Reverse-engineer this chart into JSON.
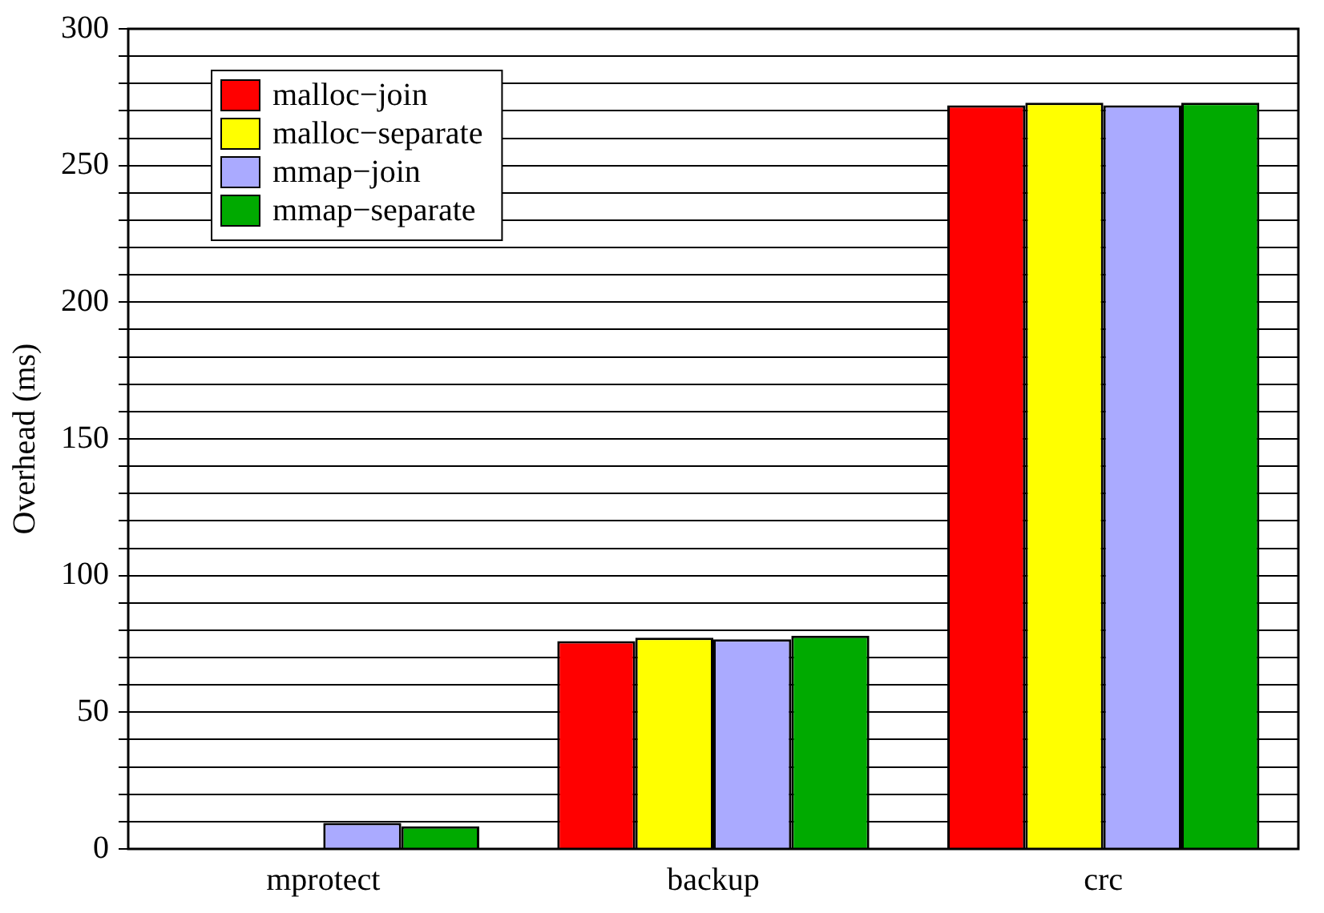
{
  "chart_data": {
    "type": "bar",
    "ylabel": "Overhead (ms)",
    "categories": [
      "mprotect",
      "backup",
      "crc"
    ],
    "series": [
      {
        "name": "malloc−join",
        "color": "#ff0000",
        "values": [
          0,
          76,
          272
        ]
      },
      {
        "name": "malloc−separate",
        "color": "#ffff00",
        "values": [
          0,
          77.3,
          273
        ]
      },
      {
        "name": "mmap−join",
        "color": "#aaaaff",
        "values": [
          9.5,
          76.7,
          272
        ]
      },
      {
        "name": "mmap−separate",
        "color": "#00aa00",
        "values": [
          8.3,
          78,
          273
        ]
      }
    ],
    "ylim": [
      0,
      300
    ],
    "yticks": [
      0,
      {
        "value": 10,
        "label": null
      },
      {
        "value": 20,
        "label": null
      },
      {
        "value": 30,
        "label": null
      },
      {
        "value": 40,
        "label": null
      },
      50,
      {
        "value": 60,
        "label": null
      },
      {
        "value": 70,
        "label": null
      },
      {
        "value": 80,
        "label": null
      },
      {
        "value": 90,
        "label": null
      },
      100,
      {
        "value": 110,
        "label": null
      },
      {
        "value": 120,
        "label": null
      },
      {
        "value": 130,
        "label": null
      },
      {
        "value": 140,
        "label": null
      },
      150,
      {
        "value": 160,
        "label": null
      },
      {
        "value": 170,
        "label": null
      },
      {
        "value": 180,
        "label": null
      },
      {
        "value": 190,
        "label": null
      },
      200,
      {
        "value": 210,
        "label": null
      },
      {
        "value": 220,
        "label": null
      },
      {
        "value": 230,
        "label": null
      },
      {
        "value": 240,
        "label": null
      },
      250,
      {
        "value": 260,
        "label": null
      },
      {
        "value": 270,
        "label": null
      },
      {
        "value": 280,
        "label": null
      },
      {
        "value": 290,
        "label": null
      },
      300
    ],
    "grid": "y",
    "legend": "top left"
  }
}
